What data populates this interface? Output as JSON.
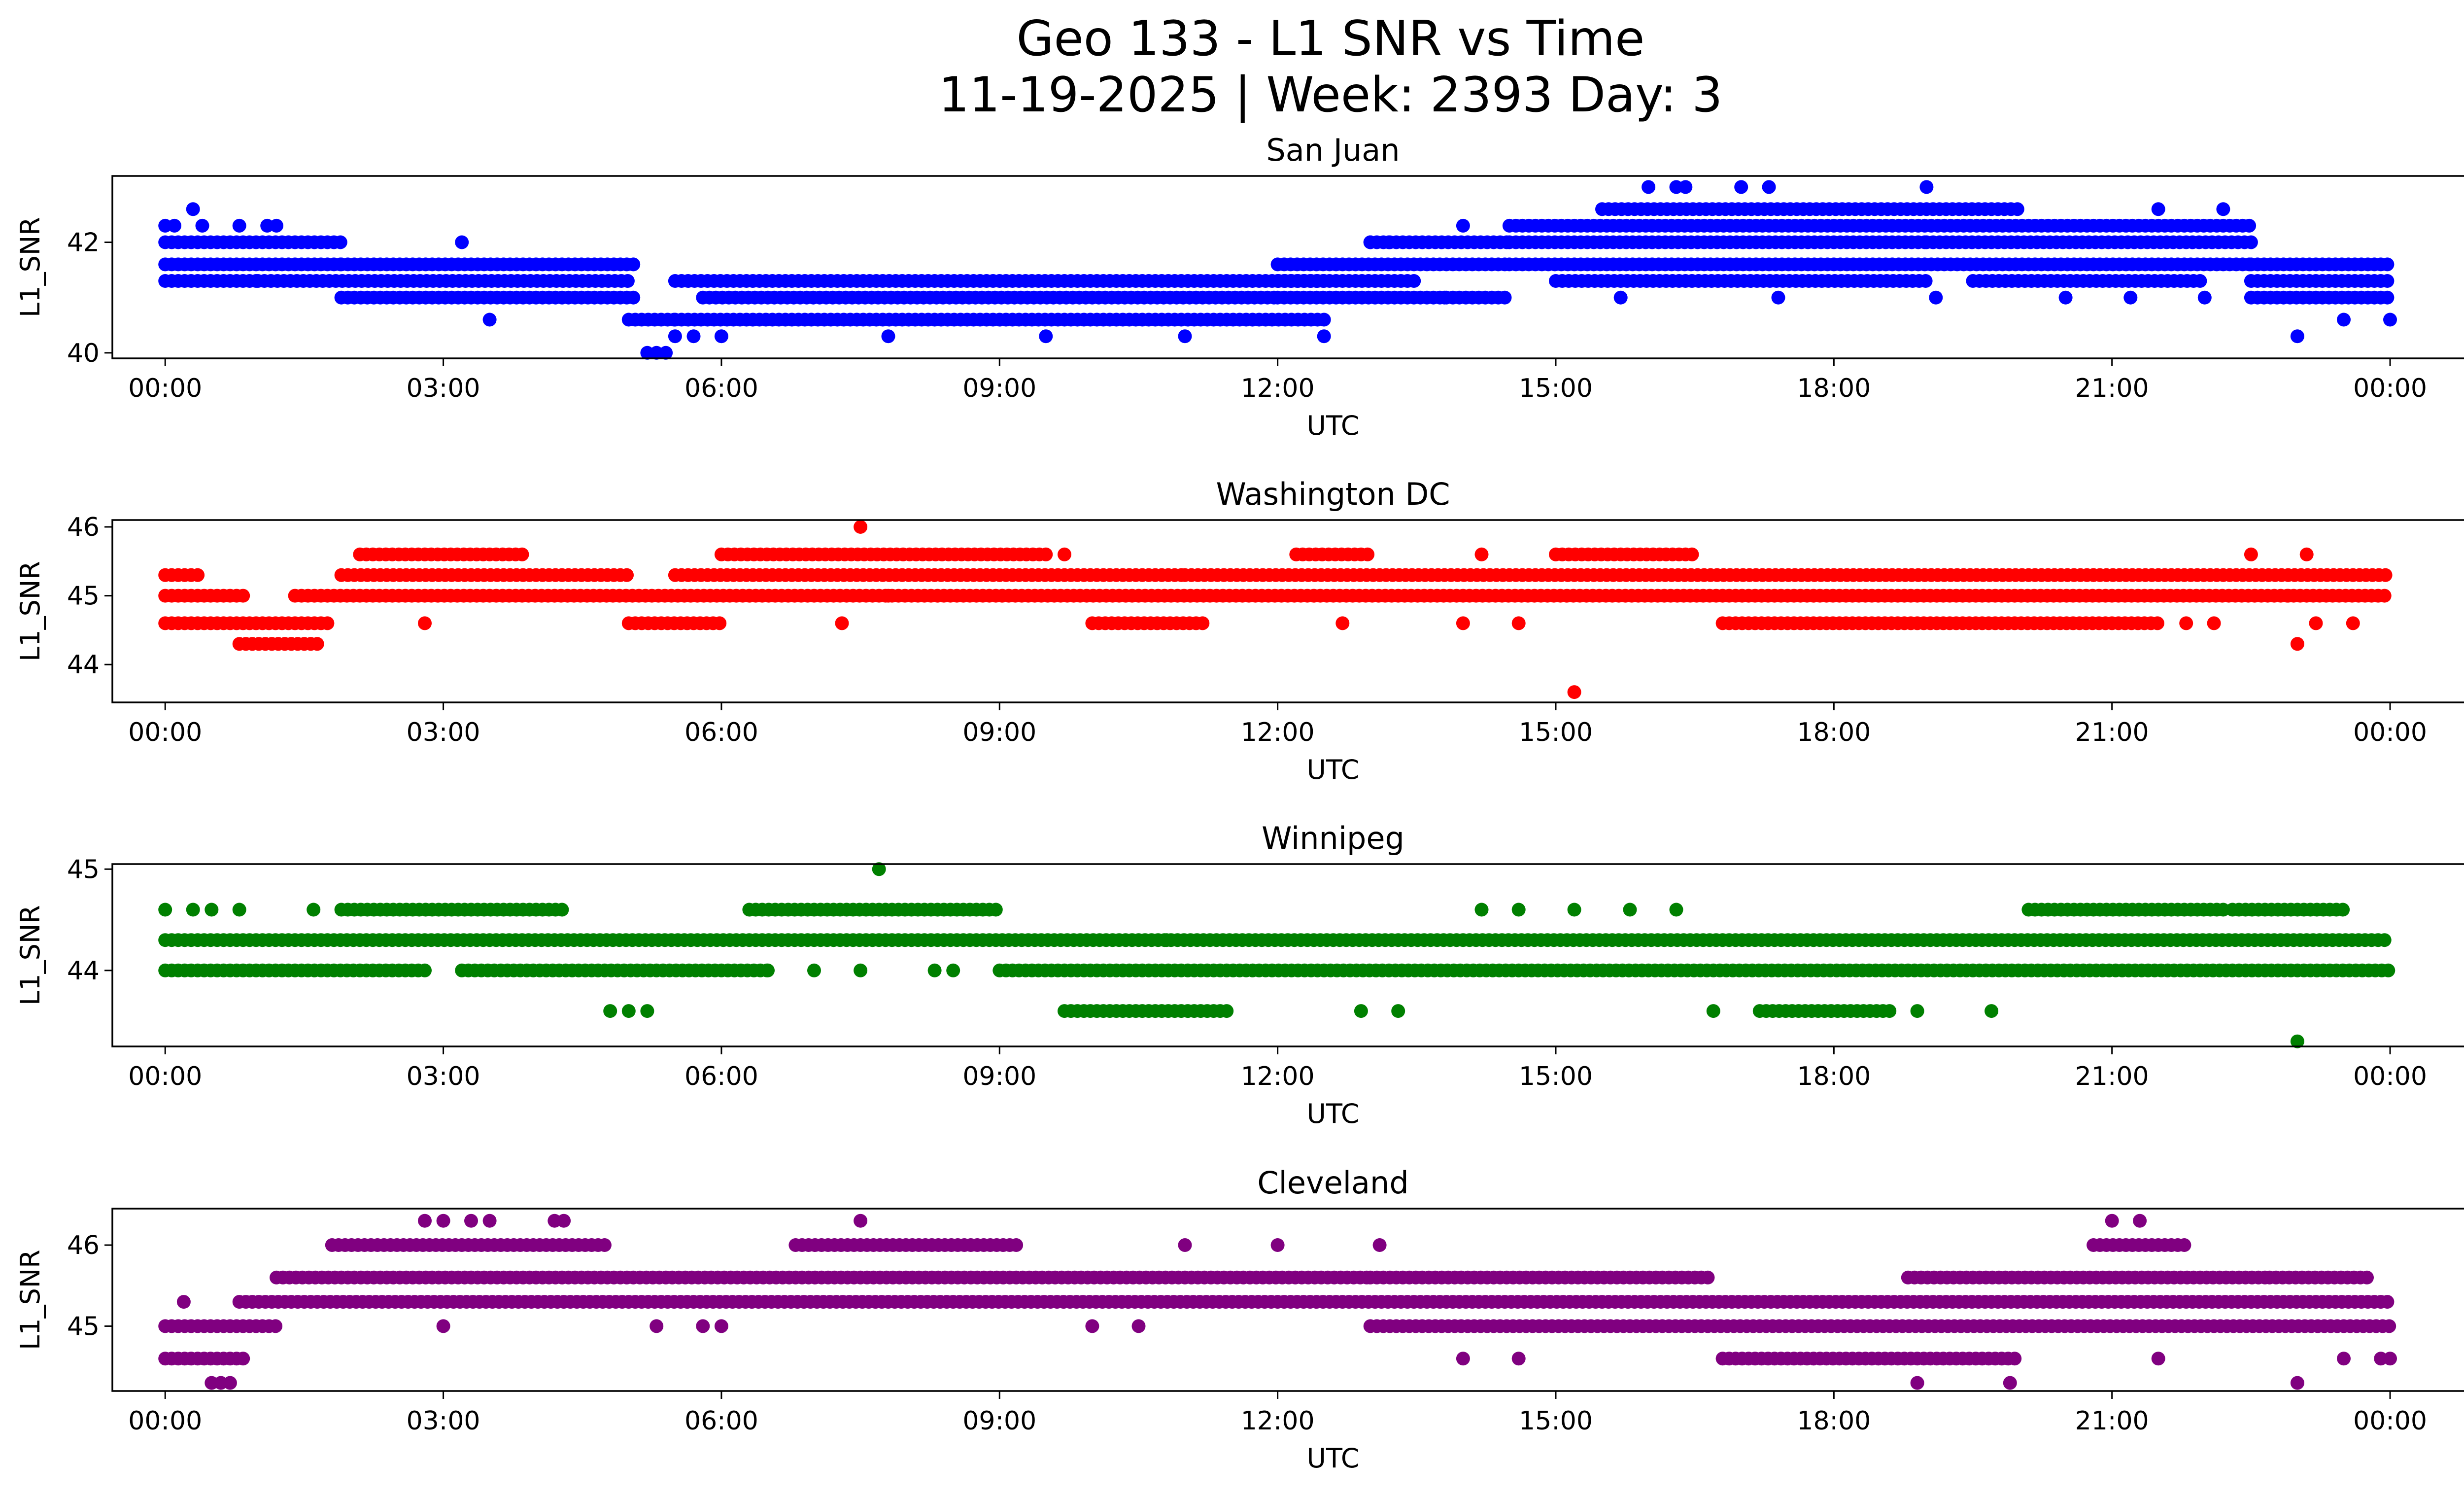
{
  "figure": {
    "title_line1": "Geo 133 - L1 SNR vs Time",
    "title_line2": "11-19-2025 | Week: 2393 Day: 3"
  },
  "chart_data": [
    {
      "type": "scatter",
      "title": "San Juan",
      "xlabel": "UTC",
      "ylabel": "L1_SNR",
      "color": "#0000ff",
      "xlim_hours": [
        -0.57,
        25.77
      ],
      "ylim": [
        39.9,
        43.2
      ],
      "yticks": [
        40,
        42
      ],
      "xticks_hours": [
        0,
        3,
        6,
        9,
        12,
        15,
        18,
        21,
        24
      ],
      "xtick_labels": [
        "00:00",
        "03:00",
        "06:00",
        "09:00",
        "12:00",
        "15:00",
        "18:00",
        "21:00",
        "00:00"
      ],
      "series": [
        {
          "name": "dense_bands",
          "y_levels": [
            41.0,
            41.3,
            41.6,
            42.0,
            42.3
          ],
          "segments": [
            [
              0.0,
              1.0,
              41.3
            ],
            [
              0.0,
              1.9,
              41.6
            ],
            [
              0.0,
              1.9,
              42.0
            ],
            [
              1.0,
              5.0,
              41.3
            ],
            [
              1.9,
              5.1,
              41.6
            ],
            [
              1.9,
              5.1,
              41.0
            ],
            [
              5.0,
              5.5,
              40.6
            ],
            [
              5.5,
              12.5,
              41.3
            ],
            [
              5.5,
              12.5,
              40.6
            ],
            [
              5.8,
              12.0,
              41.0
            ],
            [
              12.0,
              14.5,
              41.6
            ],
            [
              12.0,
              14.5,
              41.0
            ],
            [
              12.0,
              13.5,
              41.3
            ],
            [
              13.0,
              14.5,
              42.0
            ],
            [
              14.5,
              22.5,
              42.3
            ],
            [
              14.5,
              22.5,
              41.6
            ],
            [
              14.5,
              19.0,
              42.0
            ],
            [
              19.0,
              22.5,
              42.0
            ],
            [
              15.5,
              20.0,
              42.6
            ],
            [
              22.5,
              24.0,
              41.3
            ],
            [
              22.5,
              24.0,
              41.0
            ],
            [
              22.5,
              24.0,
              41.6
            ],
            [
              15.0,
              19.0,
              41.3
            ],
            [
              19.5,
              22.0,
              41.3
            ]
          ]
        },
        {
          "name": "scattered_points",
          "points": [
            [
              0.0,
              42.3
            ],
            [
              0.1,
              42.3
            ],
            [
              0.3,
              42.6
            ],
            [
              0.4,
              42.3
            ],
            [
              0.8,
              42.3
            ],
            [
              1.1,
              42.3
            ],
            [
              1.2,
              42.3
            ],
            [
              3.2,
              42.0
            ],
            [
              3.5,
              40.6
            ],
            [
              5.2,
              40.0
            ],
            [
              5.3,
              40.0
            ],
            [
              5.4,
              40.0
            ],
            [
              5.5,
              40.3
            ],
            [
              5.7,
              40.3
            ],
            [
              6.0,
              40.3
            ],
            [
              7.8,
              40.3
            ],
            [
              9.5,
              40.3
            ],
            [
              11.0,
              40.3
            ],
            [
              12.5,
              40.3
            ],
            [
              13.0,
              42.0
            ],
            [
              13.2,
              42.0
            ],
            [
              13.8,
              41.0
            ],
            [
              14.0,
              42.3
            ],
            [
              15.7,
              41.0
            ],
            [
              16.0,
              43.0
            ],
            [
              16.3,
              43.0
            ],
            [
              16.4,
              43.0
            ],
            [
              17.0,
              43.0
            ],
            [
              17.3,
              43.0
            ],
            [
              17.4,
              41.0
            ],
            [
              19.0,
              43.0
            ],
            [
              19.1,
              41.0
            ],
            [
              20.5,
              41.0
            ],
            [
              21.2,
              41.0
            ],
            [
              21.5,
              42.6
            ],
            [
              22.0,
              41.0
            ],
            [
              22.2,
              42.6
            ],
            [
              23.0,
              40.3
            ],
            [
              23.5,
              40.6
            ],
            [
              24.0,
              40.6
            ]
          ]
        }
      ]
    },
    {
      "type": "scatter",
      "title": "Washington DC",
      "xlabel": "UTC",
      "ylabel": "L1_SNR",
      "color": "#ff0000",
      "xlim_hours": [
        -0.57,
        25.77
      ],
      "ylim": [
        43.45,
        46.1
      ],
      "yticks": [
        44,
        45,
        46
      ],
      "xticks_hours": [
        0,
        3,
        6,
        9,
        12,
        15,
        18,
        21,
        24
      ],
      "xtick_labels": [
        "00:00",
        "03:00",
        "06:00",
        "09:00",
        "12:00",
        "15:00",
        "18:00",
        "21:00",
        "00:00"
      ],
      "series": [
        {
          "name": "dense_bands",
          "y_levels": [
            44.3,
            44.6,
            45.0,
            45.3,
            45.6
          ],
          "segments": [
            [
              0.0,
              0.4,
              45.3
            ],
            [
              0.0,
              0.9,
              45.0
            ],
            [
              0.0,
              1.8,
              44.6
            ],
            [
              0.8,
              1.7,
              44.3
            ],
            [
              1.4,
              24.0,
              45.0
            ],
            [
              1.9,
              5.0,
              45.3
            ],
            [
              2.1,
              3.9,
              45.6
            ],
            [
              5.0,
              6.0,
              44.6
            ],
            [
              5.5,
              11.0,
              45.3
            ],
            [
              6.0,
              9.5,
              45.6
            ],
            [
              10.0,
              11.2,
              44.6
            ],
            [
              11.0,
              24.0,
              45.3
            ],
            [
              12.2,
              13.0,
              45.6
            ],
            [
              15.0,
              16.5,
              45.6
            ],
            [
              16.8,
              21.5,
              44.6
            ]
          ]
        },
        {
          "name": "scattered_points",
          "points": [
            [
              2.8,
              44.6
            ],
            [
              7.3,
              44.6
            ],
            [
              7.5,
              46.0
            ],
            [
              7.8,
              45.0
            ],
            [
              9.7,
              45.6
            ],
            [
              12.7,
              44.6
            ],
            [
              14.0,
              44.6
            ],
            [
              14.2,
              45.6
            ],
            [
              14.6,
              44.6
            ],
            [
              15.2,
              43.6
            ],
            [
              21.8,
              44.6
            ],
            [
              22.1,
              44.6
            ],
            [
              22.5,
              45.6
            ],
            [
              23.0,
              44.3
            ],
            [
              23.1,
              45.6
            ],
            [
              23.2,
              44.6
            ],
            [
              23.6,
              44.6
            ],
            [
              20.8,
              45.3
            ],
            [
              22.9,
              45.0
            ]
          ]
        }
      ]
    },
    {
      "type": "scatter",
      "title": "Winnipeg",
      "xlabel": "UTC",
      "ylabel": "L1_SNR",
      "color": "#008000",
      "xlim_hours": [
        -0.57,
        25.77
      ],
      "ylim": [
        43.25,
        45.05
      ],
      "yticks": [
        44,
        45
      ],
      "xticks_hours": [
        0,
        3,
        6,
        9,
        12,
        15,
        18,
        21,
        24
      ],
      "xtick_labels": [
        "00:00",
        "03:00",
        "06:00",
        "09:00",
        "12:00",
        "15:00",
        "18:00",
        "21:00",
        "00:00"
      ],
      "series": [
        {
          "name": "dense_bands",
          "y_levels": [
            43.6,
            44.0,
            44.3,
            44.6
          ],
          "segments": [
            [
              0.0,
              24.0,
              44.3
            ],
            [
              0.0,
              2.8,
              44.0
            ],
            [
              1.9,
              4.3,
              44.6
            ],
            [
              3.2,
              6.5,
              44.0
            ],
            [
              6.3,
              9.0,
              44.6
            ],
            [
              9.0,
              24.0,
              44.0
            ],
            [
              9.7,
              11.5,
              43.6
            ],
            [
              17.2,
              18.6,
              43.6
            ],
            [
              20.1,
              22.2,
              44.6
            ],
            [
              22.3,
              23.5,
              44.6
            ]
          ]
        },
        {
          "name": "scattered_points",
          "points": [
            [
              0.0,
              44.6
            ],
            [
              0.3,
              44.6
            ],
            [
              0.5,
              44.6
            ],
            [
              0.8,
              44.6
            ],
            [
              1.6,
              44.6
            ],
            [
              4.8,
              43.6
            ],
            [
              5.0,
              43.6
            ],
            [
              5.2,
              43.6
            ],
            [
              6.5,
              44.0
            ],
            [
              7.0,
              44.0
            ],
            [
              7.5,
              44.0
            ],
            [
              7.7,
              45.0
            ],
            [
              8.3,
              44.0
            ],
            [
              8.5,
              44.0
            ],
            [
              10.8,
              44.3
            ],
            [
              12.9,
              43.6
            ],
            [
              13.3,
              43.6
            ],
            [
              14.2,
              44.6
            ],
            [
              14.6,
              44.6
            ],
            [
              15.2,
              44.6
            ],
            [
              15.8,
              44.6
            ],
            [
              16.3,
              44.6
            ],
            [
              16.7,
              43.6
            ],
            [
              18.9,
              43.6
            ],
            [
              19.7,
              43.6
            ],
            [
              23.0,
              43.3
            ]
          ]
        }
      ]
    },
    {
      "type": "scatter",
      "title": "Cleveland",
      "xlabel": "UTC",
      "ylabel": "L1_SNR",
      "color": "#800080",
      "xlim_hours": [
        -0.57,
        25.77
      ],
      "ylim": [
        44.2,
        46.45
      ],
      "yticks": [
        45,
        46
      ],
      "xticks_hours": [
        0,
        3,
        6,
        9,
        12,
        15,
        18,
        21,
        24
      ],
      "xtick_labels": [
        "00:00",
        "03:00",
        "06:00",
        "09:00",
        "12:00",
        "15:00",
        "18:00",
        "21:00",
        "00:00"
      ],
      "series": [
        {
          "name": "dense_bands",
          "y_levels": [
            44.6,
            45.0,
            45.3,
            45.6,
            46.0
          ],
          "segments": [
            [
              0.0,
              0.9,
              44.6
            ],
            [
              0.0,
              1.2,
              45.0
            ],
            [
              0.8,
              24.0,
              45.3
            ],
            [
              1.2,
              13.0,
              45.6
            ],
            [
              1.8,
              4.8,
              46.0
            ],
            [
              6.8,
              9.2,
              46.0
            ],
            [
              13.0,
              24.0,
              45.0
            ],
            [
              13.0,
              16.7,
              45.6
            ],
            [
              16.8,
              20.0,
              44.6
            ],
            [
              18.8,
              22.7,
              45.6
            ],
            [
              20.8,
              21.8,
              46.0
            ],
            [
              22.7,
              23.8,
              45.6
            ]
          ]
        },
        {
          "name": "scattered_points",
          "points": [
            [
              0.2,
              45.3
            ],
            [
              0.5,
              44.3
            ],
            [
              0.6,
              44.3
            ],
            [
              0.7,
              44.3
            ],
            [
              2.8,
              46.3
            ],
            [
              3.0,
              46.3
            ],
            [
              3.3,
              46.3
            ],
            [
              3.5,
              46.3
            ],
            [
              4.2,
              46.3
            ],
            [
              4.3,
              46.3
            ],
            [
              3.0,
              45.0
            ],
            [
              5.3,
              45.0
            ],
            [
              5.8,
              45.0
            ],
            [
              6.0,
              45.0
            ],
            [
              7.5,
              46.3
            ],
            [
              10.0,
              45.0
            ],
            [
              10.5,
              45.0
            ],
            [
              11.0,
              46.0
            ],
            [
              12.0,
              46.0
            ],
            [
              13.1,
              46.0
            ],
            [
              14.0,
              44.6
            ],
            [
              14.6,
              44.6
            ],
            [
              18.9,
              44.3
            ],
            [
              19.9,
              44.3
            ],
            [
              21.0,
              46.3
            ],
            [
              21.3,
              46.3
            ],
            [
              21.5,
              44.6
            ],
            [
              23.0,
              44.3
            ],
            [
              23.5,
              44.6
            ],
            [
              23.9,
              44.6
            ],
            [
              24.0,
              44.6
            ]
          ]
        }
      ]
    }
  ]
}
